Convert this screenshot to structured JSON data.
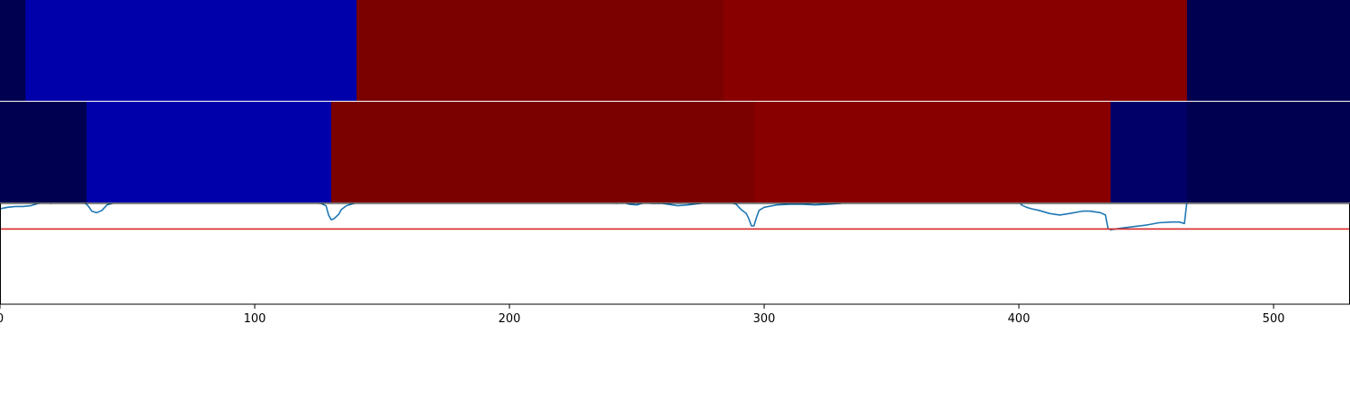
{
  "chart_data": [
    {
      "type": "heatmap",
      "segments": [
        {
          "start": 0,
          "end": 10,
          "color": "#000050"
        },
        {
          "start": 10,
          "end": 140,
          "color": "#0000aa"
        },
        {
          "start": 140,
          "end": 284,
          "color": "#7b0000"
        },
        {
          "start": 284,
          "end": 466,
          "color": "#880000"
        },
        {
          "start": 466,
          "end": 530,
          "color": "#000050"
        }
      ]
    },
    {
      "type": "heatmap",
      "segments": [
        {
          "start": 0,
          "end": 34,
          "color": "#000050"
        },
        {
          "start": 34,
          "end": 130,
          "color": "#0000aa"
        },
        {
          "start": 130,
          "end": 296,
          "color": "#7b0000"
        },
        {
          "start": 296,
          "end": 436,
          "color": "#880000"
        },
        {
          "start": 436,
          "end": 466,
          "color": "#000068"
        },
        {
          "start": 466,
          "end": 530,
          "color": "#000050"
        }
      ]
    },
    {
      "type": "line",
      "xlim": [
        0,
        530
      ],
      "ylim": [
        -0.3,
        1.0
      ],
      "x_ticks": [
        0,
        100,
        200,
        300,
        400,
        500
      ],
      "x_tick_labels": [
        "0",
        "100",
        "200",
        "300",
        "400",
        "500"
      ],
      "series": [
        {
          "color": "#1f77b4",
          "points": [
            [
              0,
              0.93
            ],
            [
              3,
              0.95
            ],
            [
              6,
              0.96
            ],
            [
              9,
              0.96
            ],
            [
              12,
              0.97
            ],
            [
              15,
              1.0
            ],
            [
              18,
              1.01
            ],
            [
              20,
              1.0
            ],
            [
              24,
              1.03
            ],
            [
              27,
              1.03
            ],
            [
              30,
              1.03
            ],
            [
              32,
              1.02
            ],
            [
              34,
              0.99
            ],
            [
              35,
              0.95
            ],
            [
              36,
              0.9
            ],
            [
              37,
              0.89
            ],
            [
              38,
              0.88
            ],
            [
              40,
              0.91
            ],
            [
              42,
              0.98
            ],
            [
              45,
              1.01
            ],
            [
              48,
              1.02
            ],
            [
              52,
              1.04
            ],
            [
              60,
              1.05
            ],
            [
              75,
              1.05
            ],
            [
              90,
              1.05
            ],
            [
              95,
              1.04
            ],
            [
              100,
              1.03
            ],
            [
              105,
              1.04
            ],
            [
              110,
              1.04
            ],
            [
              114,
              1.03
            ],
            [
              115,
              1.01
            ],
            [
              118,
              1.02
            ],
            [
              122,
              1.01
            ],
            [
              126,
              1.0
            ],
            [
              128,
              0.97
            ],
            [
              129,
              0.85
            ],
            [
              130,
              0.79
            ],
            [
              131,
              0.8
            ],
            [
              133,
              0.86
            ],
            [
              134,
              0.92
            ],
            [
              136,
              0.97
            ],
            [
              140,
              1.01
            ],
            [
              143,
              1.02
            ],
            [
              147,
              1.04
            ],
            [
              160,
              1.05
            ],
            [
              170,
              1.04
            ],
            [
              180,
              1.04
            ],
            [
              185,
              1.02
            ],
            [
              190,
              1.03
            ],
            [
              200,
              1.02
            ],
            [
              205,
              1.03
            ],
            [
              210,
              1.03
            ],
            [
              220,
              1.04
            ],
            [
              230,
              1.04
            ],
            [
              238,
              1.03
            ],
            [
              242,
              1.0
            ],
            [
              244,
              1.02
            ],
            [
              247,
              0.99
            ],
            [
              250,
              0.98
            ],
            [
              253,
              1.01
            ],
            [
              256,
              1.0
            ],
            [
              260,
              1.0
            ],
            [
              264,
              0.98
            ],
            [
              266,
              0.97
            ],
            [
              270,
              0.98
            ],
            [
              275,
              1.0
            ],
            [
              280,
              1.02
            ],
            [
              284,
              1.02
            ],
            [
              287,
              1.01
            ],
            [
              289,
              0.99
            ],
            [
              291,
              0.92
            ],
            [
              293,
              0.87
            ],
            [
              294,
              0.8
            ],
            [
              295,
              0.71
            ],
            [
              296,
              0.71
            ],
            [
              297,
              0.82
            ],
            [
              298,
              0.91
            ],
            [
              300,
              0.95
            ],
            [
              305,
              0.98
            ],
            [
              310,
              0.99
            ],
            [
              315,
              0.99
            ],
            [
              320,
              0.98
            ],
            [
              325,
              0.99
            ],
            [
              330,
              1.0
            ],
            [
              337,
              1.03
            ],
            [
              345,
              1.04
            ],
            [
              355,
              1.04
            ],
            [
              365,
              1.04
            ],
            [
              372,
              1.04
            ],
            [
              380,
              1.05
            ],
            [
              390,
              1.06
            ],
            [
              400,
              1.05
            ],
            [
              401,
              0.98
            ],
            [
              403,
              0.95
            ],
            [
              405,
              0.93
            ],
            [
              408,
              0.91
            ],
            [
              412,
              0.87
            ],
            [
              416,
              0.85
            ],
            [
              420,
              0.87
            ],
            [
              425,
              0.9
            ],
            [
              428,
              0.9
            ],
            [
              432,
              0.88
            ],
            [
              434,
              0.85
            ],
            [
              435,
              0.68
            ],
            [
              436,
              0.66
            ],
            [
              438,
              0.67
            ],
            [
              440,
              0.68
            ],
            [
              445,
              0.7
            ],
            [
              450,
              0.72
            ],
            [
              455,
              0.75
            ],
            [
              460,
              0.76
            ],
            [
              463,
              0.76
            ],
            [
              465,
              0.74
            ],
            [
              466,
              1.03
            ],
            [
              470,
              1.04
            ],
            [
              480,
              1.03
            ],
            [
              490,
              1.02
            ],
            [
              500,
              1.04
            ],
            [
              505,
              1.04
            ],
            [
              510,
              1.03
            ],
            [
              515,
              1.02
            ],
            [
              520,
              1.01
            ],
            [
              525,
              1.02
            ],
            [
              530,
              1.02
            ]
          ]
        },
        {
          "color": "#d62728",
          "points": [
            [
              0,
              0.67
            ],
            [
              530,
              0.67
            ]
          ]
        }
      ]
    }
  ]
}
